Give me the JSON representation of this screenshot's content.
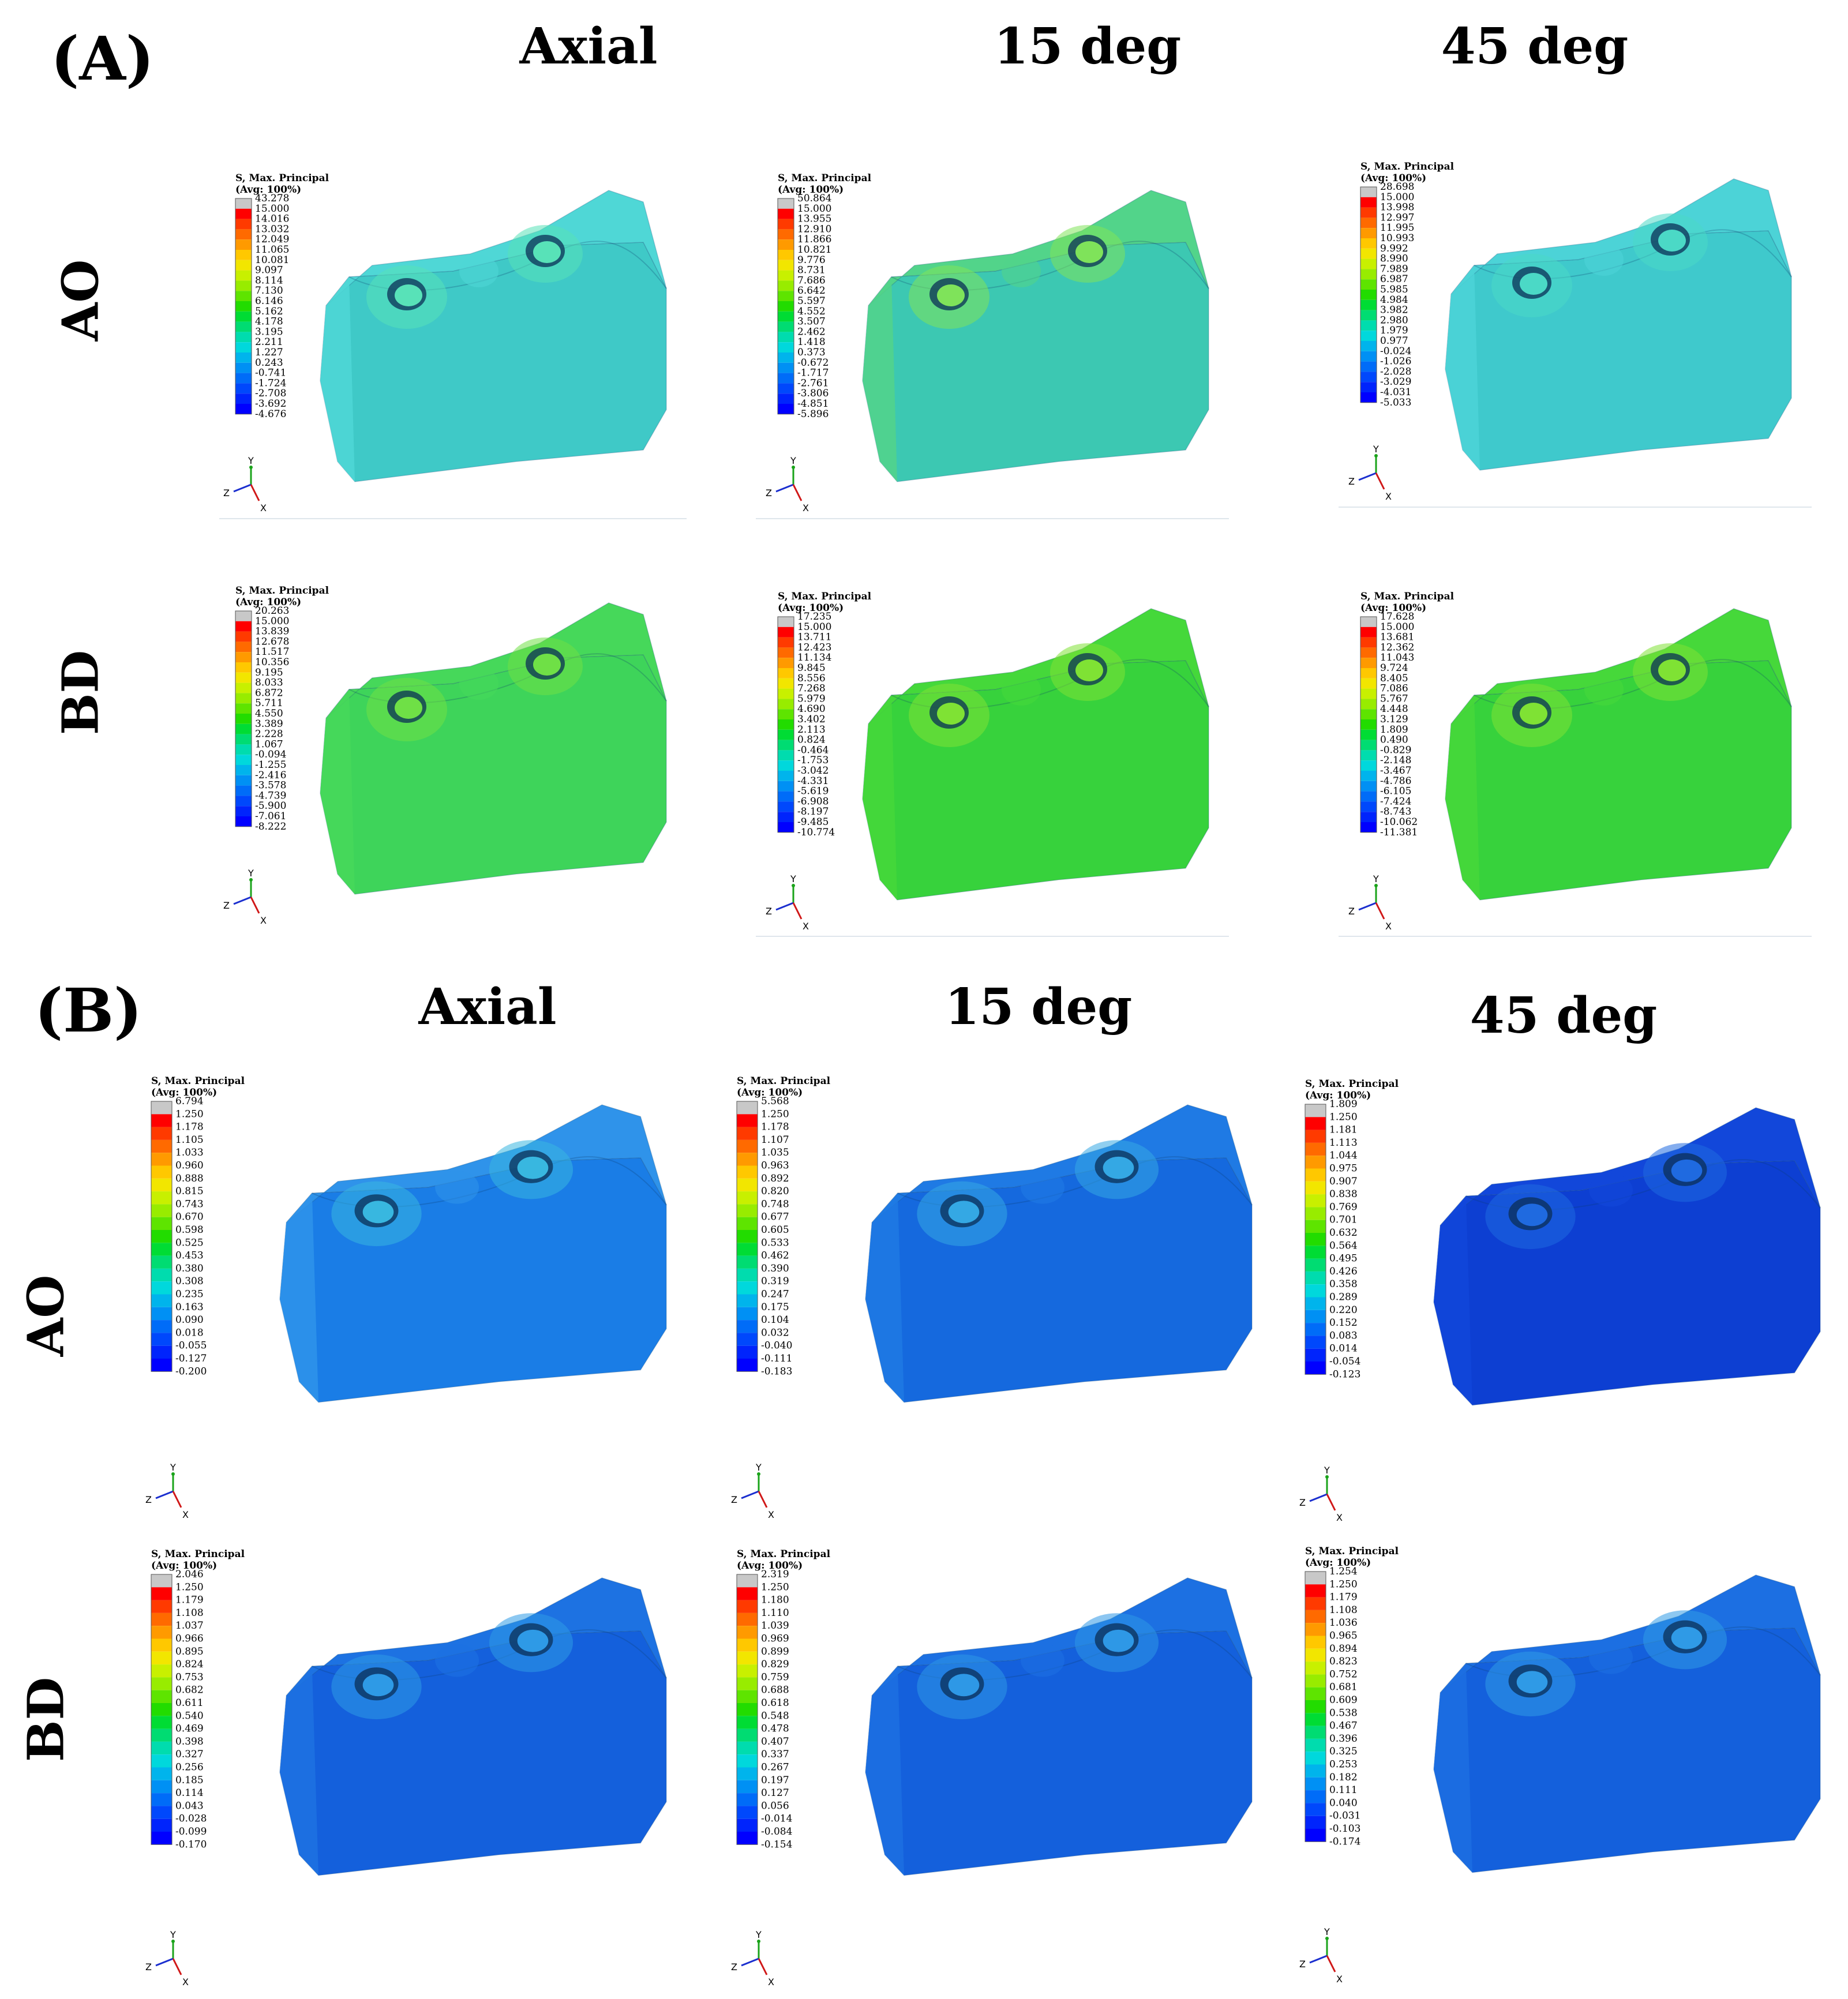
{
  "figure": {
    "sections": [
      {
        "label": "(A)",
        "columns": [
          "Axial",
          "15 deg",
          "45 deg"
        ],
        "rows": [
          "AO",
          "BD"
        ],
        "panels": [
          {
            "row": "AO",
            "column": "Axial",
            "legend_title": "S, Max. Principal",
            "legend_subtitle": "(Avg: 100%)",
            "values": [
              "43.278",
              "15.000",
              "14.016",
              "13.032",
              "12.049",
              "11.065",
              "10.081",
              "9.097",
              "8.114",
              "7.130",
              "6.146",
              "5.162",
              "4.178",
              "3.195",
              "2.211",
              "1.227",
              "0.243",
              "-0.741",
              "-1.724",
              "-2.708",
              "-3.692",
              "-4.676"
            ],
            "color_body": "#3fc9c7",
            "color_top": "#4fd7d6",
            "color_spot": "#58e2b8"
          },
          {
            "row": "AO",
            "column": "15 deg",
            "legend_title": "S, Max. Principal",
            "legend_subtitle": "(Avg: 100%)",
            "values": [
              "50.864",
              "15.000",
              "13.955",
              "12.910",
              "11.866",
              "10.821",
              "9.776",
              "8.731",
              "7.686",
              "6.642",
              "5.597",
              "4.552",
              "3.507",
              "2.462",
              "1.418",
              "0.373",
              "-0.672",
              "-1.717",
              "-2.761",
              "-3.806",
              "-4.851",
              "-5.896"
            ],
            "color_body": "#3cc8b2",
            "color_top": "#52d48a",
            "color_spot": "#7fe35a"
          },
          {
            "row": "AO",
            "column": "45 deg",
            "legend_title": "S, Max. Principal",
            "legend_subtitle": "(Avg: 100%)",
            "values": [
              "28.698",
              "15.000",
              "13.998",
              "12.997",
              "11.995",
              "10.993",
              "9.992",
              "8.990",
              "7.989",
              "6.987",
              "5.985",
              "4.984",
              "3.982",
              "2.980",
              "1.979",
              "0.977",
              "-0.024",
              "-1.026",
              "-2.028",
              "-3.029",
              "-4.031",
              "-5.033"
            ],
            "color_body": "#3fc9cc",
            "color_top": "#4cd3d7",
            "color_spot": "#4bd9c6"
          },
          {
            "row": "BD",
            "column": "Axial",
            "legend_title": "S, Max. Principal",
            "legend_subtitle": "(Avg: 100%)",
            "values": [
              "20.263",
              "15.000",
              "13.839",
              "12.678",
              "11.517",
              "10.356",
              "9.195",
              "8.033",
              "6.872",
              "5.711",
              "4.550",
              "3.389",
              "2.228",
              "1.067",
              "-0.094",
              "-1.255",
              "-2.416",
              "-3.578",
              "-4.739",
              "-5.900",
              "-7.061",
              "-8.222"
            ],
            "color_body": "#3ed45a",
            "color_top": "#46d85a",
            "color_spot": "#6fe046"
          },
          {
            "row": "BD",
            "column": "15 deg",
            "legend_title": "S, Max. Principal",
            "legend_subtitle": "(Avg: 100%)",
            "values": [
              "17.235",
              "15.000",
              "13.711",
              "12.423",
              "11.134",
              "9.845",
              "8.556",
              "7.268",
              "5.979",
              "4.690",
              "3.402",
              "2.113",
              "0.824",
              "-0.464",
              "-1.753",
              "-3.042",
              "-4.331",
              "-5.619",
              "-6.908",
              "-8.197",
              "-9.485",
              "-10.774"
            ],
            "color_body": "#37d23c",
            "color_top": "#45d83a",
            "color_spot": "#7fe234"
          },
          {
            "row": "BD",
            "column": "45 deg",
            "legend_title": "S, Max. Principal",
            "legend_subtitle": "(Avg: 100%)",
            "values": [
              "17.628",
              "15.000",
              "13.681",
              "12.362",
              "11.043",
              "9.724",
              "8.405",
              "7.086",
              "5.767",
              "4.448",
              "3.129",
              "1.809",
              "0.490",
              "-0.829",
              "-2.148",
              "-3.467",
              "-4.786",
              "-6.105",
              "-7.424",
              "-8.743",
              "-10.062",
              "-11.381"
            ],
            "color_body": "#37d23c",
            "color_top": "#46d83a",
            "color_spot": "#7fe234"
          }
        ]
      },
      {
        "label": "(B)",
        "columns": [
          "Axial",
          "15 deg",
          "45 deg"
        ],
        "rows": [
          "AO",
          "BD"
        ],
        "panels": [
          {
            "row": "AO",
            "column": "Axial",
            "legend_title": "S, Max. Principal",
            "legend_subtitle": "(Avg: 100%)",
            "values": [
              "6.794",
              "1.250",
              "1.178",
              "1.105",
              "1.033",
              "0.960",
              "0.888",
              "0.815",
              "0.743",
              "0.670",
              "0.598",
              "0.525",
              "0.453",
              "0.380",
              "0.308",
              "0.235",
              "0.163",
              "0.090",
              "0.018",
              "-0.055",
              "-0.127",
              "-0.200"
            ],
            "color_body": "#1a7de6",
            "color_top": "#2f93ea",
            "color_spot": "#38b7e0"
          },
          {
            "row": "AO",
            "column": "15 deg",
            "legend_title": "S, Max. Principal",
            "legend_subtitle": "(Avg: 100%)",
            "values": [
              "5.568",
              "1.250",
              "1.178",
              "1.107",
              "1.035",
              "0.963",
              "0.892",
              "0.820",
              "0.748",
              "0.677",
              "0.605",
              "0.533",
              "0.462",
              "0.390",
              "0.319",
              "0.247",
              "0.175",
              "0.104",
              "0.032",
              "-0.040",
              "-0.111",
              "-0.183"
            ],
            "color_body": "#1569de",
            "color_top": "#1f7ae4",
            "color_spot": "#34a8e4"
          },
          {
            "row": "AO",
            "column": "45 deg",
            "legend_title": "S, Max. Principal",
            "legend_subtitle": "(Avg: 100%)",
            "values": [
              "1.809",
              "1.250",
              "1.181",
              "1.113",
              "1.044",
              "0.975",
              "0.907",
              "0.838",
              "0.769",
              "0.701",
              "0.632",
              "0.564",
              "0.495",
              "0.426",
              "0.358",
              "0.289",
              "0.220",
              "0.152",
              "0.083",
              "0.014",
              "-0.054",
              "-0.123"
            ],
            "color_body": "#0d3fd2",
            "color_top": "#1247da",
            "color_spot": "#1f6ae0"
          },
          {
            "row": "BD",
            "column": "Axial",
            "legend_title": "S, Max. Principal",
            "legend_subtitle": "(Avg: 100%)",
            "values": [
              "2.046",
              "1.250",
              "1.179",
              "1.108",
              "1.037",
              "0.966",
              "0.895",
              "0.824",
              "0.753",
              "0.682",
              "0.611",
              "0.540",
              "0.469",
              "0.398",
              "0.327",
              "0.256",
              "0.185",
              "0.114",
              "0.043",
              "-0.028",
              "-0.099",
              "-0.170"
            ],
            "color_body": "#1460dc",
            "color_top": "#1d72e2",
            "color_spot": "#2e9ae6"
          },
          {
            "row": "BD",
            "column": "15 deg",
            "legend_title": "S, Max. Principal",
            "legend_subtitle": "(Avg: 100%)",
            "values": [
              "2.319",
              "1.250",
              "1.180",
              "1.110",
              "1.039",
              "0.969",
              "0.899",
              "0.829",
              "0.759",
              "0.688",
              "0.618",
              "0.548",
              "0.478",
              "0.407",
              "0.337",
              "0.267",
              "0.197",
              "0.127",
              "0.056",
              "-0.014",
              "-0.084",
              "-0.154"
            ],
            "color_body": "#1460dc",
            "color_top": "#1c70e2",
            "color_spot": "#2e98e6"
          },
          {
            "row": "BD",
            "column": "45 deg",
            "legend_title": "S, Max. Principal",
            "legend_subtitle": "(Avg: 100%)",
            "values": [
              "1.254",
              "1.250",
              "1.179",
              "1.108",
              "1.036",
              "0.965",
              "0.894",
              "0.823",
              "0.752",
              "0.681",
              "0.609",
              "0.538",
              "0.467",
              "0.396",
              "0.325",
              "0.253",
              "0.182",
              "0.111",
              "0.040",
              "-0.031",
              "-0.103",
              "-0.174"
            ],
            "color_body": "#1460dc",
            "color_top": "#1c6fe2",
            "color_spot": "#2f9ae6"
          }
        ]
      }
    ],
    "axis_triad": {
      "x": "X",
      "y": "Y",
      "z": "Z"
    },
    "colormap": [
      "#c8c8c8",
      "#ff0000",
      "#ff3a00",
      "#ff6a00",
      "#ff9a00",
      "#ffc800",
      "#f2e600",
      "#c8f000",
      "#98ec00",
      "#5ee400",
      "#22dc00",
      "#00dc34",
      "#00dc72",
      "#00dcae",
      "#00d8dc",
      "#00b4ec",
      "#0090f4",
      "#006cf8",
      "#0048fc",
      "#0024fc",
      "#0000ff"
    ]
  }
}
